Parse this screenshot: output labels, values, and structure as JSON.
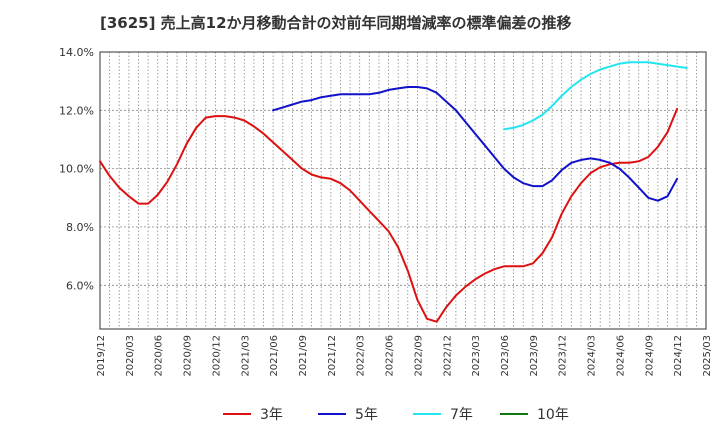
{
  "title": "[3625]  売上高12か月移動合計の対前年同期増減率の標準偏差の推移",
  "chart_data": {
    "type": "line",
    "title": "[3625]  売上高12か月移動合計の対前年同期増減率の標準偏差の推移",
    "xlabel": "",
    "ylabel": "",
    "x_range": [
      "2019-12",
      "2025-03"
    ],
    "x_ticks": [
      "2019/12",
      "2020/03",
      "2020/06",
      "2020/09",
      "2020/12",
      "2021/03",
      "2021/06",
      "2021/09",
      "2021/12",
      "2022/03",
      "2022/06",
      "2022/09",
      "2022/12",
      "2023/03",
      "2023/06",
      "2023/09",
      "2023/12",
      "2024/03",
      "2024/06",
      "2024/09",
      "2024/12",
      "2025/03"
    ],
    "ylim": [
      4.5,
      14.0
    ],
    "y_ticks": [
      6.0,
      8.0,
      10.0,
      12.0,
      14.0
    ],
    "y_tick_labels": [
      "6.0%",
      "8.0%",
      "10.0%",
      "12.0%",
      "14.0%"
    ],
    "grid": true,
    "legend_position": "bottom",
    "series": [
      {
        "name": "3年",
        "color": "#dd1111",
        "start": "2019-12",
        "values": [
          10.25,
          9.75,
          9.35,
          9.05,
          8.8,
          8.8,
          9.1,
          9.55,
          10.15,
          10.85,
          11.4,
          11.75,
          11.8,
          11.8,
          11.75,
          11.65,
          11.45,
          11.2,
          10.9,
          10.6,
          10.3,
          10.0,
          9.8,
          9.7,
          9.65,
          9.5,
          9.25,
          8.9,
          8.55,
          8.2,
          7.85,
          7.3,
          6.5,
          5.5,
          4.85,
          4.75,
          5.25,
          5.65,
          5.95,
          6.2,
          6.4,
          6.55,
          6.65,
          6.65,
          6.65,
          6.75,
          7.1,
          7.65,
          8.45,
          9.05,
          9.5,
          9.85,
          10.05,
          10.15,
          10.2,
          10.2,
          10.25,
          10.4,
          10.75,
          11.25,
          12.05
        ]
      },
      {
        "name": "5年",
        "color": "#1111cc",
        "start": "2021-06",
        "values": [
          12.0,
          12.1,
          12.2,
          12.3,
          12.35,
          12.45,
          12.5,
          12.55,
          12.55,
          12.55,
          12.55,
          12.6,
          12.7,
          12.75,
          12.8,
          12.8,
          12.75,
          12.6,
          12.3,
          12.0,
          11.6,
          11.2,
          10.8,
          10.4,
          10.0,
          9.7,
          9.5,
          9.4,
          9.4,
          9.6,
          9.95,
          10.2,
          10.3,
          10.35,
          10.3,
          10.2,
          10.0,
          9.7,
          9.35,
          9.0,
          8.9,
          9.05,
          9.65
        ]
      },
      {
        "name": "7年",
        "color": "#22e5f0",
        "start": "2023-06",
        "values": [
          11.35,
          11.4,
          11.5,
          11.65,
          11.85,
          12.15,
          12.5,
          12.8,
          13.05,
          13.25,
          13.4,
          13.5,
          13.6,
          13.65,
          13.65,
          13.65,
          13.6,
          13.55,
          13.5,
          13.45
        ]
      },
      {
        "name": "10年",
        "color": "#117711",
        "start": "2019-12",
        "values": []
      }
    ]
  }
}
